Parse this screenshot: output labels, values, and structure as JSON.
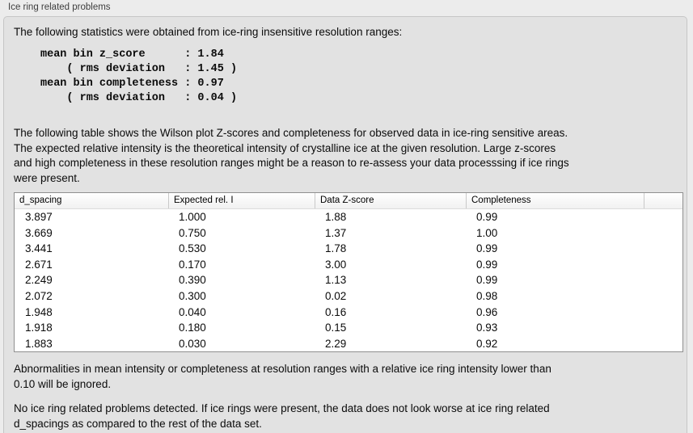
{
  "panel": {
    "title": "Ice ring related problems"
  },
  "intro": "The following statistics were obtained from ice-ring insensitive resolution ranges:",
  "stats": {
    "block": "mean bin z_score      : 1.84\n    ( rms deviation   : 1.45 )\nmean bin completeness : 0.97\n    ( rms deviation   : 0.04 )",
    "mean_bin_z_score": "1.84",
    "z_score_rms_deviation": "1.45",
    "mean_bin_completeness": "0.97",
    "completeness_rms_deviation": "0.04"
  },
  "table_note": {
    "lines": [
      "The following table shows the Wilson plot Z-scores and completeness for observed data in ice-ring sensitive areas.",
      "The expected relative intensity is the theoretical intensity of crystalline ice at the given resolution. Large z-scores",
      "and high completeness in these resolution ranges might be a reason to re-assess your data processsing if ice rings",
      "were present."
    ]
  },
  "table": {
    "columns": [
      "d_spacing",
      "Expected rel. I",
      "Data Z-score",
      "Completeness"
    ],
    "rows": [
      [
        "3.897",
        "1.000",
        "1.88",
        "0.99"
      ],
      [
        "3.669",
        "0.750",
        "1.37",
        "1.00"
      ],
      [
        "3.441",
        "0.530",
        "1.78",
        "0.99"
      ],
      [
        "2.671",
        "0.170",
        "3.00",
        "0.99"
      ],
      [
        "2.249",
        "0.390",
        "1.13",
        "0.99"
      ],
      [
        "2.072",
        "0.300",
        "0.02",
        "0.98"
      ],
      [
        "1.948",
        "0.040",
        "0.16",
        "0.96"
      ],
      [
        "1.918",
        "0.180",
        "0.15",
        "0.93"
      ],
      [
        "1.883",
        "0.030",
        "2.29",
        "0.92"
      ]
    ]
  },
  "ignore_note": {
    "lines": [
      "Abnormalities in mean intensity or completeness at resolution ranges with a relative ice ring intensity lower than",
      "0.10 will be ignored."
    ]
  },
  "conclusion_note": {
    "lines": [
      "No ice ring related problems detected. If ice rings were present, the data does not look worse at ice ring related",
      "d_spacings as compared to the rest of the data set."
    ]
  },
  "colors": {
    "page_background": "#ececec",
    "panel_background": "#e2e2e2",
    "panel_border": "#c6c6c6",
    "table_background": "#ffffff",
    "table_border": "#8f8f8f",
    "text": "#0b0b0b",
    "title_text": "#3e3e3e"
  }
}
